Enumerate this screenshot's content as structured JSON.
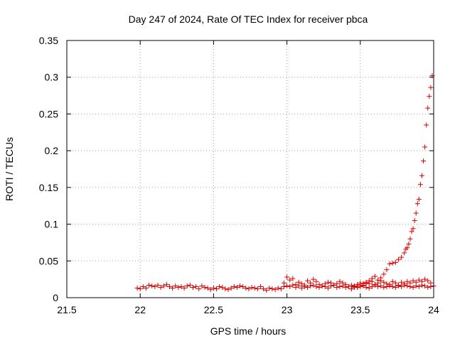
{
  "chart_data": {
    "type": "scatter",
    "title": "Day 247 of 2024, Rate Of TEC Index for receiver pbca",
    "xlabel": "GPS time / hours",
    "ylabel": "ROTI / TECUs",
    "xlim": [
      21.5,
      24
    ],
    "ylim": [
      0,
      0.35
    ],
    "x_ticks": [
      "21.5",
      "22",
      "22.5",
      "23",
      "23.5",
      "24"
    ],
    "y_ticks": [
      "0",
      "0.05",
      "0.1",
      "0.15",
      "0.2",
      "0.25",
      "0.3",
      "0.35"
    ],
    "grid": true,
    "marker": "+",
    "series": [
      {
        "color": "#dd0000",
        "x": [
          21.98,
          22.0,
          22.02,
          22.04,
          22.06,
          22.08,
          22.1,
          22.12,
          22.14,
          22.16,
          22.18,
          22.2,
          22.22,
          22.24,
          22.26,
          22.28,
          22.3,
          22.32,
          22.34,
          22.36,
          22.38,
          22.4,
          22.42,
          22.44,
          22.46,
          22.48,
          22.5,
          22.52,
          22.54,
          22.56,
          22.58,
          22.6,
          22.62,
          22.64,
          22.66,
          22.68,
          22.7,
          22.72,
          22.74,
          22.76,
          22.78,
          22.8,
          22.82,
          22.84,
          22.86,
          22.88,
          22.9,
          22.92,
          22.94,
          22.96,
          22.98,
          23.0,
          23.02,
          23.04,
          23.06,
          23.08,
          23.1,
          23.12,
          23.14,
          23.16,
          23.18,
          23.2,
          23.22,
          23.24,
          23.26,
          23.28,
          23.3,
          23.32,
          23.34,
          23.36,
          23.38,
          23.4,
          23.42,
          23.44,
          23.46,
          23.48,
          23.5,
          23.52,
          23.54,
          23.56,
          23.58,
          23.6,
          23.62,
          23.64,
          23.66,
          23.68,
          23.7,
          23.72,
          23.74,
          23.76,
          23.78,
          23.8,
          23.82,
          23.84,
          23.86,
          23.88,
          23.9,
          23.92,
          23.94,
          23.96,
          23.98,
          24.0
        ],
        "y": [
          0.013,
          0.012,
          0.015,
          0.013,
          0.017,
          0.016,
          0.015,
          0.017,
          0.014,
          0.016,
          0.018,
          0.015,
          0.013,
          0.016,
          0.014,
          0.015,
          0.013,
          0.016,
          0.017,
          0.014,
          0.015,
          0.012,
          0.016,
          0.014,
          0.013,
          0.011,
          0.013,
          0.012,
          0.015,
          0.014,
          0.012,
          0.011,
          0.013,
          0.015,
          0.014,
          0.016,
          0.015,
          0.013,
          0.012,
          0.014,
          0.013,
          0.012,
          0.015,
          0.012,
          0.01,
          0.013,
          0.012,
          0.011,
          0.013,
          0.012,
          0.015,
          0.016,
          0.015,
          0.017,
          0.014,
          0.016,
          0.013,
          0.015,
          0.014,
          0.016,
          0.017,
          0.015,
          0.014,
          0.016,
          0.015,
          0.013,
          0.016,
          0.017,
          0.014,
          0.015,
          0.016,
          0.014,
          0.015,
          0.017,
          0.016,
          0.014,
          0.015,
          0.016,
          0.014,
          0.013,
          0.015,
          0.017,
          0.015,
          0.016,
          0.014,
          0.015,
          0.016,
          0.015,
          0.014,
          0.016,
          0.015,
          0.017,
          0.016,
          0.015,
          0.014,
          0.016,
          0.015,
          0.017,
          0.016,
          0.014,
          0.015,
          0.016
        ]
      },
      {
        "color": "#dd0000",
        "x": [
          22.98,
          23.0,
          23.02,
          23.04,
          23.06,
          23.08,
          23.1,
          23.12,
          23.14,
          23.16,
          23.18,
          23.2,
          23.22,
          23.24,
          23.26,
          23.28,
          23.3,
          23.32,
          23.34,
          23.36,
          23.38,
          23.4,
          23.42,
          23.44,
          23.46,
          23.48,
          23.5,
          23.52,
          23.54,
          23.56,
          23.58,
          23.6,
          23.62,
          23.64,
          23.66,
          23.68,
          23.7,
          23.72,
          23.74,
          23.76,
          23.78,
          23.8,
          23.82,
          23.84,
          23.86,
          23.88,
          23.9,
          23.92,
          23.94,
          23.96,
          23.98
        ],
        "y": [
          0.02,
          0.028,
          0.024,
          0.026,
          0.018,
          0.021,
          0.019,
          0.017,
          0.023,
          0.02,
          0.025,
          0.022,
          0.018,
          0.016,
          0.019,
          0.021,
          0.02,
          0.017,
          0.019,
          0.022,
          0.02,
          0.018,
          0.015,
          0.012,
          0.014,
          0.018,
          0.02,
          0.017,
          0.021,
          0.019,
          0.022,
          0.018,
          0.02,
          0.023,
          0.021,
          0.019,
          0.018,
          0.022,
          0.02,
          0.017,
          0.021,
          0.019,
          0.022,
          0.02,
          0.023,
          0.021,
          0.024,
          0.022,
          0.025,
          0.023,
          0.02
        ]
      },
      {
        "color": "#dd0000",
        "x": [
          23.44,
          23.46,
          23.48,
          23.5,
          23.52,
          23.54,
          23.56,
          23.58,
          23.6,
          23.62,
          23.64,
          23.66,
          23.68,
          23.7,
          23.72,
          23.74,
          23.76,
          23.78,
          23.8,
          23.81,
          23.82,
          23.83,
          23.84,
          23.85,
          23.86,
          23.87,
          23.88,
          23.89,
          23.9,
          23.91,
          23.92,
          23.93,
          23.94,
          23.95,
          23.96,
          23.97,
          23.98,
          23.99
        ],
        "y": [
          0.012,
          0.015,
          0.014,
          0.017,
          0.019,
          0.02,
          0.023,
          0.026,
          0.029,
          0.024,
          0.027,
          0.032,
          0.038,
          0.046,
          0.047,
          0.048,
          0.052,
          0.055,
          0.061,
          0.066,
          0.068,
          0.073,
          0.08,
          0.09,
          0.094,
          0.105,
          0.115,
          0.128,
          0.134,
          0.154,
          0.166,
          0.186,
          0.205,
          0.235,
          0.258,
          0.274,
          0.286,
          0.302
        ]
      }
    ]
  }
}
